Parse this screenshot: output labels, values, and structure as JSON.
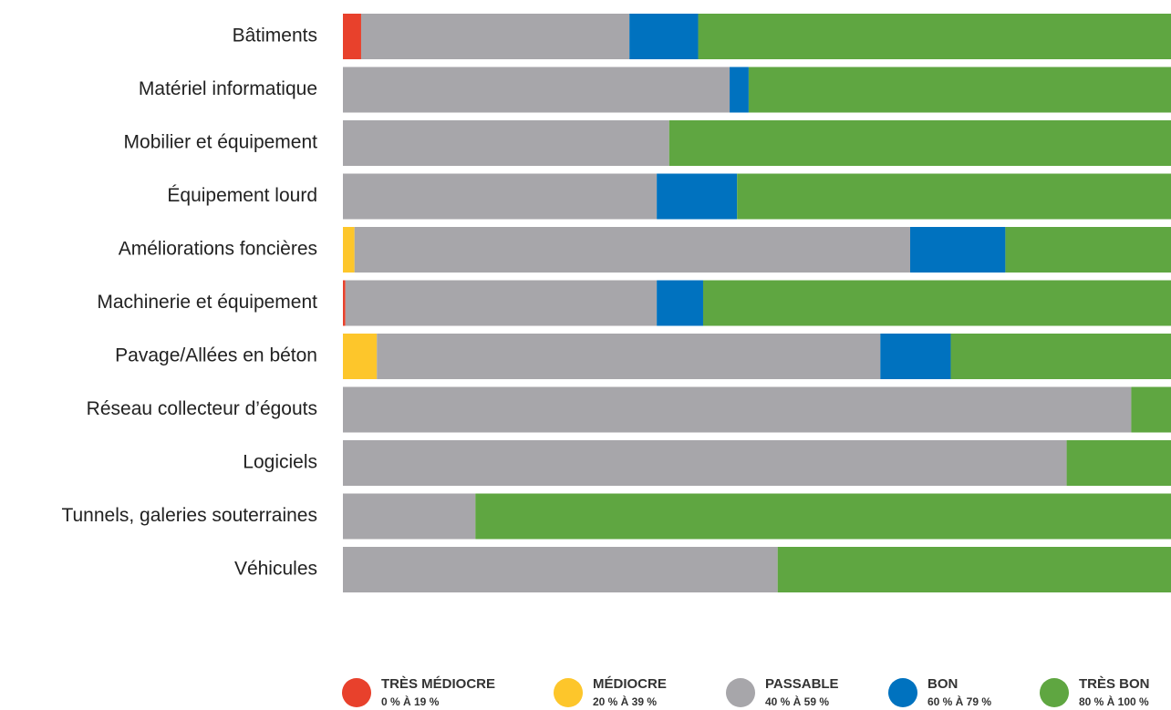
{
  "chart_data": {
    "type": "stacked_bar_horizontal",
    "categories": [
      "Bâtiments",
      "Matériel informatique",
      "Mobilier et équipement",
      "Équipement lourd",
      "Améliorations foncières",
      "Machinerie et équipement",
      "Pavage/Allées en béton",
      "Réseau collecteur d’égouts",
      "Logiciels",
      "Tunnels, galeries souterraines",
      "Véhicules"
    ],
    "xlim": [
      0,
      100
    ],
    "series": [
      {
        "name": "TRÈS MÉDIOCRE",
        "range": "0 % À 19 %",
        "color": "#e8412c",
        "values": [
          2.2,
          0,
          0,
          0,
          0,
          0.3,
          0,
          0,
          0,
          0,
          0
        ]
      },
      {
        "name": "MÉDIOCRE",
        "range": "20 % À 39 %",
        "color": "#fdc62b",
        "values": [
          0,
          0,
          0,
          0,
          1.4,
          0,
          4.1,
          0,
          0,
          0,
          0
        ]
      },
      {
        "name": "PASSABLE",
        "range": "40 % À 59 %",
        "color": "#a7a6aa",
        "values": [
          32.4,
          46.7,
          39.4,
          37.9,
          67.1,
          37.6,
          60.8,
          95.2,
          87.4,
          16.0,
          52.5
        ]
      },
      {
        "name": "BON",
        "range": "60 % À 79 %",
        "color": "#0072bf",
        "values": [
          8.3,
          2.3,
          0,
          9.7,
          11.5,
          5.6,
          8.5,
          0,
          0,
          0,
          0
        ]
      },
      {
        "name": "TRÈS BON",
        "range": "80 % À 100 %",
        "color": "#5fa641",
        "values": [
          57.1,
          51.0,
          60.6,
          52.4,
          20.0,
          56.5,
          26.6,
          4.8,
          12.6,
          84.0,
          47.5
        ]
      }
    ]
  }
}
